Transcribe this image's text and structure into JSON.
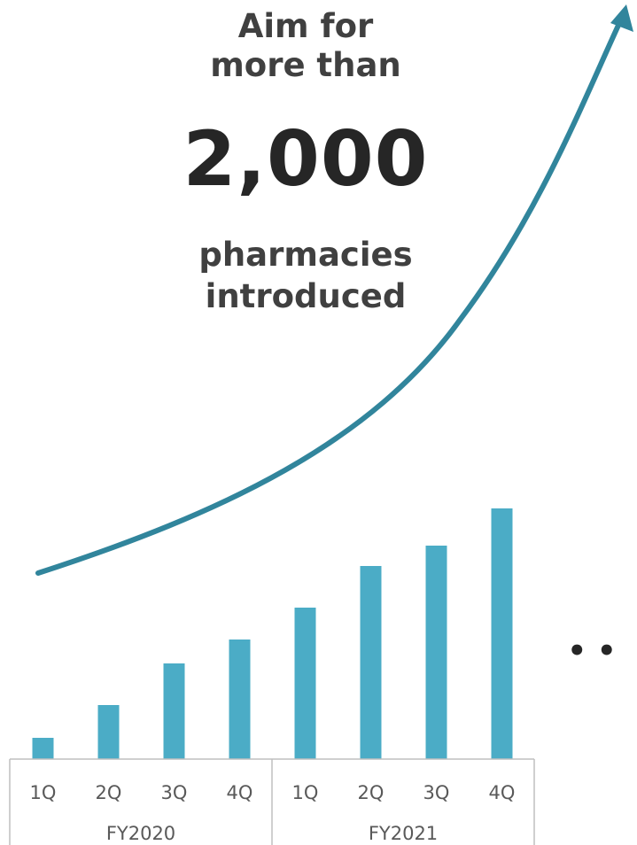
{
  "headline": {
    "aim_line1": "Aim for",
    "aim_line2": "more than",
    "target_number": "2,000",
    "unit_line1": "pharmacies",
    "unit_line2": "introduced"
  },
  "continuation": "• •",
  "colors": {
    "bar": "#4BACC6",
    "arrow": "#31859C",
    "text_dark": "#262626",
    "text_gray": "#404040",
    "axis": "#BFBFBF",
    "tick_label": "#595959"
  },
  "chart_data": {
    "type": "bar",
    "title": "",
    "xlabel": "",
    "ylabel": "",
    "categories": [
      "1Q",
      "2Q",
      "3Q",
      "4Q",
      "1Q",
      "2Q",
      "3Q",
      "4Q"
    ],
    "groups": [
      {
        "label": "FY2020",
        "categories": [
          "1Q",
          "2Q",
          "3Q",
          "4Q"
        ]
      },
      {
        "label": "FY2021",
        "categories": [
          "1Q",
          "2Q",
          "3Q",
          "4Q"
        ]
      }
    ],
    "values": [
      24,
      61,
      108,
      135,
      171,
      218,
      241,
      283
    ],
    "ylim": [
      0,
      300
    ],
    "grid": false,
    "y_axis_shown": false,
    "trend_arrow": "exponential"
  }
}
